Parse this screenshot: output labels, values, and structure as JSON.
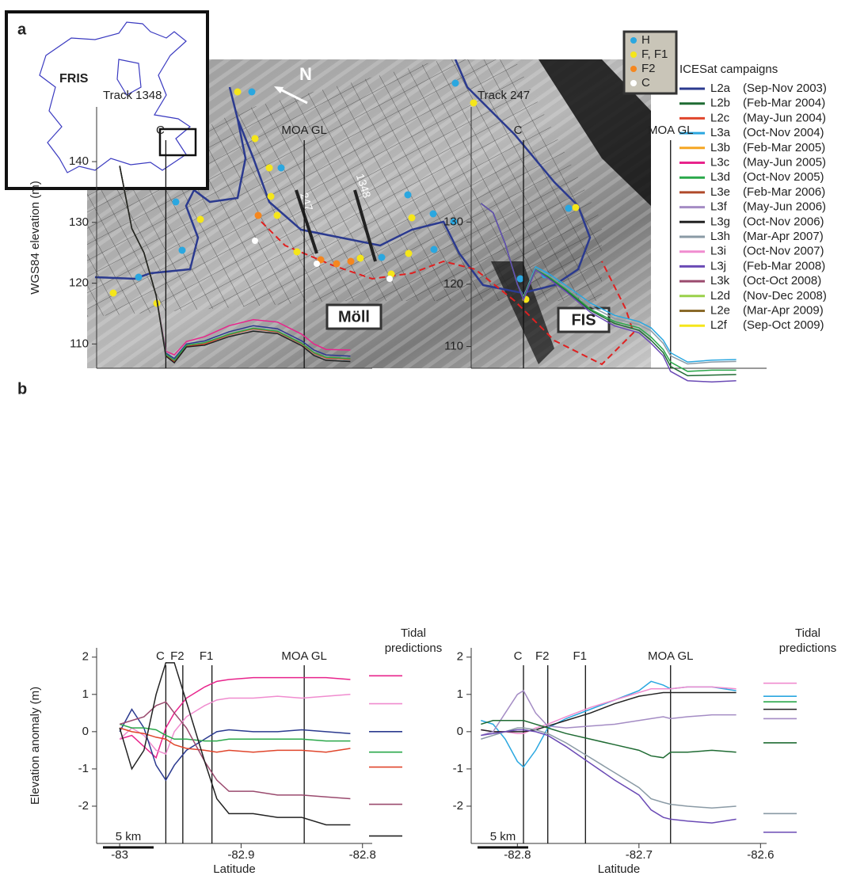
{
  "panel_a": {
    "label": "a",
    "inset_label": "FRIS",
    "north": "N",
    "track_labels": [
      "247",
      "1348"
    ],
    "region_labels": [
      "Möll",
      "FIS"
    ],
    "point_legend": [
      {
        "label": "H",
        "color": "#2aa7e0"
      },
      {
        "label": "F, F1",
        "color": "#f5e61a"
      },
      {
        "label": "F2",
        "color": "#f5871f"
      },
      {
        "label": "C",
        "color": "#ffffff"
      }
    ],
    "campaigns_title": "ICESat campaigns",
    "campaigns": [
      {
        "code": "L2a",
        "period": "(Sep-Nov 2003)",
        "color": "#2b3a8f"
      },
      {
        "code": "L2b",
        "period": "(Feb-Mar 2004)",
        "color": "#1f6b33"
      },
      {
        "code": "L2c",
        "period": "(May-Jun 2004)",
        "color": "#e0452b"
      },
      {
        "code": "L3a",
        "period": "(Oct-Nov 2004)",
        "color": "#2aa7e0"
      },
      {
        "code": "L3b",
        "period": "(Feb-Mar 2005)",
        "color": "#f5a623"
      },
      {
        "code": "L3c",
        "period": "(May-Jun 2005)",
        "color": "#e8248c"
      },
      {
        "code": "L3d",
        "period": "(Oct-Nov 2005)",
        "color": "#2aa84a"
      },
      {
        "code": "L3e",
        "period": "(Feb-Mar 2006)",
        "color": "#b04a2a"
      },
      {
        "code": "L3f",
        "period": "(May-Jun 2006)",
        "color": "#a48cc4"
      },
      {
        "code": "L3g",
        "period": "(Oct-Nov 2006)",
        "color": "#222222"
      },
      {
        "code": "L3h",
        "period": "(Mar-Apr 2007)",
        "color": "#8a9aa5"
      },
      {
        "code": "L3i",
        "period": "(Oct-Nov 2007)",
        "color": "#f08ccf"
      },
      {
        "code": "L3j",
        "period": "(Feb-Mar 2008)",
        "color": "#6a4ab5"
      },
      {
        "code": "L3k",
        "period": "(Oct-Oct 2008)",
        "color": "#9a4a6e"
      },
      {
        "code": "L2d",
        "period": "(Nov-Dec 2008)",
        "color": "#9ad14a"
      },
      {
        "code": "L2e",
        "period": "(Mar-Apr 2009)",
        "color": "#8a6a2a"
      },
      {
        "code": "L2f",
        "period": "(Sep-Oct 2009)",
        "color": "#f5e61a"
      }
    ]
  },
  "panel_b_label": "b",
  "chart_data": [
    {
      "type": "line",
      "title": "Track 1348",
      "ylabel": "WGS84 elevation (m)",
      "xlim": [
        -83.019,
        -82.792
      ],
      "ylim": [
        106,
        149
      ],
      "yticks": [
        110,
        120,
        130,
        140
      ],
      "markers": [
        {
          "label": "C",
          "x": -82.962
        },
        {
          "label": "MOA GL",
          "x": -82.848
        }
      ],
      "x": [
        -83.0,
        -82.99,
        -82.98,
        -82.97,
        -82.962,
        -82.955,
        -82.945,
        -82.93,
        -82.91,
        -82.89,
        -82.87,
        -82.85,
        -82.84,
        -82.83,
        -82.81
      ],
      "series": [
        {
          "color": "#e8248c",
          "values": [
            139.3,
            129,
            125,
            118,
            108.8,
            108.2,
            110.4,
            111.2,
            113,
            114,
            113.6,
            111.6,
            110,
            109.1,
            109
          ]
        },
        {
          "color": "#2b3a8f",
          "values": [
            139.3,
            129,
            125,
            118,
            108.5,
            107.6,
            110,
            110.5,
            112,
            113,
            112.5,
            110.5,
            109,
            108.2,
            108
          ]
        },
        {
          "color": "#e0452b",
          "values": [
            139.3,
            129,
            125,
            118,
            108.2,
            107.1,
            109.6,
            110,
            111.5,
            112.5,
            112,
            110,
            108.5,
            107.7,
            107.5
          ]
        },
        {
          "color": "#2aa84a",
          "values": [
            139.3,
            129,
            125,
            118,
            108.3,
            107.3,
            109.8,
            110.2,
            111.6,
            112.6,
            112.1,
            110.1,
            108.6,
            107.8,
            107.6
          ]
        },
        {
          "color": "#222222",
          "values": [
            139.3,
            129,
            125,
            118,
            108,
            106.9,
            109.5,
            109.8,
            111.2,
            112.1,
            111.7,
            109.7,
            108.1,
            107.3,
            107.1
          ]
        }
      ]
    },
    {
      "type": "line",
      "title": "Track 247",
      "xlim": [
        -82.838,
        -82.595
      ],
      "ylim": [
        106.5,
        148.5
      ],
      "yticks": [
        110,
        120,
        130
      ],
      "markers": [
        {
          "label": "C",
          "x": -82.795
        },
        {
          "label": "MOA GL",
          "x": -82.674
        }
      ],
      "x": [
        -82.83,
        -82.82,
        -82.81,
        -82.8,
        -82.795,
        -82.785,
        -82.775,
        -82.76,
        -82.74,
        -82.72,
        -82.7,
        -82.69,
        -82.68,
        -82.674,
        -82.66,
        -82.64,
        -82.62
      ],
      "series": [
        {
          "color": "#2aa7e0",
          "values": [
            133,
            131.5,
            126.5,
            120,
            118,
            122.8,
            121.8,
            119.8,
            117,
            115,
            114,
            113,
            111,
            109,
            107.5,
            107.8,
            107.9
          ]
        },
        {
          "color": "#8a9aa5",
          "values": [
            133,
            131.5,
            126.5,
            120,
            118,
            122.5,
            121.5,
            119.5,
            116.5,
            114.5,
            113.5,
            112.5,
            110.5,
            108.5,
            107.2,
            107.5,
            107.6
          ]
        },
        {
          "color": "#2aa84a",
          "values": [
            133,
            131.5,
            126.5,
            120,
            117.8,
            122.4,
            121.3,
            119.2,
            116,
            114,
            113,
            111.5,
            109.5,
            107.5,
            106,
            106.2,
            106.2
          ]
        },
        {
          "color": "#1f6b33",
          "values": [
            133,
            131.5,
            126.5,
            120,
            117.7,
            122.3,
            121.1,
            119,
            115.8,
            113.7,
            112.6,
            111,
            109,
            106.8,
            105.3,
            105.4,
            105.5
          ]
        },
        {
          "color": "#6a4ab5",
          "values": [
            133,
            131.5,
            126.5,
            120,
            117.5,
            122.3,
            121,
            118.8,
            115.5,
            113.3,
            112.2,
            110.5,
            108.5,
            106,
            104.5,
            104.3,
            104.5
          ]
        }
      ]
    },
    {
      "type": "line",
      "ylabel": "Elevation anomaly (m)",
      "xlabel": "Latitude",
      "xlim": [
        -83.019,
        -82.792
      ],
      "ylim": [
        -3,
        2.25
      ],
      "yticks": [
        -2,
        -1,
        0,
        1,
        2
      ],
      "xticks": [
        -83,
        -82.9,
        -82.8
      ],
      "scale_bar": "5 km",
      "tidal_label": [
        "Tidal",
        "predictions"
      ],
      "markers": [
        {
          "label": "C",
          "x": -82.962
        },
        {
          "label": "F2",
          "x": -82.948
        },
        {
          "label": "F1",
          "x": -82.924
        },
        {
          "label": "MOA GL",
          "x": -82.848
        }
      ],
      "x": [
        -83.0,
        -82.99,
        -82.98,
        -82.97,
        -82.962,
        -82.955,
        -82.945,
        -82.93,
        -82.92,
        -82.91,
        -82.89,
        -82.87,
        -82.85,
        -82.83,
        -82.81
      ],
      "series": [
        {
          "color": "#e8248c",
          "values": [
            -0.2,
            -0.1,
            -0.4,
            -0.7,
            0.1,
            0.5,
            0.9,
            1.2,
            1.35,
            1.4,
            1.45,
            1.45,
            1.45,
            1.45,
            1.4
          ]
        },
        {
          "color": "#f08ccf",
          "values": [
            -0.2,
            0.1,
            -0.1,
            -0.5,
            -0.6,
            0,
            0.4,
            0.7,
            0.85,
            0.9,
            0.9,
            0.95,
            0.9,
            0.95,
            1.0
          ]
        },
        {
          "color": "#2b3a8f",
          "values": [
            0,
            0.6,
            0.1,
            -0.9,
            -1.3,
            -0.9,
            -0.5,
            -0.2,
            0,
            0.05,
            0,
            0,
            0.05,
            0,
            -0.05
          ]
        },
        {
          "color": "#2aa84a",
          "values": [
            0.2,
            0.1,
            0.1,
            0.05,
            -0.1,
            -0.2,
            -0.2,
            -0.25,
            -0.25,
            -0.2,
            -0.2,
            -0.2,
            -0.2,
            -0.25,
            -0.25
          ]
        },
        {
          "color": "#e0452b",
          "values": [
            0.1,
            0,
            -0.05,
            -0.15,
            -0.2,
            -0.35,
            -0.45,
            -0.5,
            -0.55,
            -0.5,
            -0.55,
            -0.5,
            -0.5,
            -0.55,
            -0.45
          ]
        },
        {
          "color": "#9a4a6e",
          "values": [
            0.2,
            0.3,
            0.4,
            0.7,
            0.8,
            0.5,
            0.1,
            -0.8,
            -1.3,
            -1.6,
            -1.6,
            -1.7,
            -1.7,
            -1.75,
            -1.8
          ]
        },
        {
          "color": "#222222",
          "values": [
            0.1,
            -1.0,
            -0.5,
            1.0,
            1.85,
            1.85,
            0.8,
            -0.8,
            -1.8,
            -2.2,
            -2.2,
            -2.3,
            -2.3,
            -2.5,
            -2.5
          ]
        }
      ],
      "tidal_predictions": [
        {
          "color": "#e8248c",
          "value": 1.5
        },
        {
          "color": "#f08ccf",
          "value": 0.75
        },
        {
          "color": "#2b3a8f",
          "value": 0
        },
        {
          "color": "#2aa84a",
          "value": -0.55
        },
        {
          "color": "#e0452b",
          "value": -0.95
        },
        {
          "color": "#9a4a6e",
          "value": -1.95
        },
        {
          "color": "#222222",
          "value": -2.8
        }
      ]
    },
    {
      "type": "line",
      "xlabel": "Latitude",
      "xlim": [
        -82.838,
        -82.595
      ],
      "ylim": [
        -3,
        2.25
      ],
      "yticks": [
        -2,
        -1,
        0,
        1,
        2
      ],
      "xticks": [
        -82.8,
        -82.7,
        -82.6
      ],
      "scale_bar": "5 km",
      "tidal_label": [
        "Tidal",
        "predictions"
      ],
      "markers": [
        {
          "label": "C",
          "x": -82.795
        },
        {
          "label": "F2",
          "x": -82.775
        },
        {
          "label": "F1",
          "x": -82.744
        },
        {
          "label": "MOA GL",
          "x": -82.674
        }
      ],
      "x": [
        -82.83,
        -82.82,
        -82.81,
        -82.8,
        -82.795,
        -82.785,
        -82.775,
        -82.76,
        -82.74,
        -82.72,
        -82.7,
        -82.69,
        -82.68,
        -82.674,
        -82.66,
        -82.64,
        -82.62
      ],
      "series": [
        {
          "color": "#2aa7e0",
          "values": [
            0.3,
            0.2,
            -0.2,
            -0.8,
            -0.95,
            -0.5,
            0.1,
            0.35,
            0.6,
            0.85,
            1.1,
            1.35,
            1.25,
            1.15,
            1.2,
            1.2,
            1.1
          ]
        },
        {
          "color": "#f08ccf",
          "values": [
            0.05,
            0,
            0,
            -0.05,
            -0.05,
            0.1,
            0.2,
            0.4,
            0.65,
            0.85,
            1.05,
            1.15,
            1.15,
            1.15,
            1.2,
            1.2,
            1.15
          ]
        },
        {
          "color": "#222222",
          "values": [
            0.05,
            0,
            0,
            0,
            0,
            0.05,
            0.15,
            0.3,
            0.5,
            0.75,
            0.95,
            1.0,
            1.05,
            1.05,
            1.05,
            1.05,
            1.05
          ]
        },
        {
          "color": "#a48cc4",
          "values": [
            -0.1,
            0,
            0.5,
            1.0,
            1.1,
            0.5,
            0.15,
            0.1,
            0.15,
            0.2,
            0.3,
            0.35,
            0.4,
            0.35,
            0.4,
            0.45,
            0.45
          ]
        },
        {
          "color": "#1f6b33",
          "values": [
            0.2,
            0.3,
            0.3,
            0.3,
            0.3,
            0.2,
            0.1,
            -0.05,
            -0.2,
            -0.35,
            -0.5,
            -0.65,
            -0.7,
            -0.55,
            -0.55,
            -0.5,
            -0.55
          ]
        },
        {
          "color": "#8a9aa5",
          "values": [
            -0.2,
            -0.1,
            0,
            0.1,
            0.1,
            0.05,
            -0.05,
            -0.3,
            -0.7,
            -1.1,
            -1.5,
            -1.8,
            -1.9,
            -1.95,
            -2.0,
            -2.05,
            -2.0
          ]
        },
        {
          "color": "#6a4ab5",
          "values": [
            -0.1,
            -0.05,
            0,
            0.05,
            0.05,
            0,
            -0.1,
            -0.4,
            -0.85,
            -1.3,
            -1.7,
            -2.1,
            -2.3,
            -2.35,
            -2.4,
            -2.45,
            -2.35
          ]
        }
      ],
      "tidal_predictions": [
        {
          "color": "#f08ccf",
          "value": 1.3
        },
        {
          "color": "#2aa7e0",
          "value": 0.95
        },
        {
          "color": "#2aa84a",
          "value": 0.8
        },
        {
          "color": "#222222",
          "value": 0.6
        },
        {
          "color": "#a48cc4",
          "value": 0.35
        },
        {
          "color": "#1f6b33",
          "value": -0.3
        },
        {
          "color": "#8a9aa5",
          "value": -2.2
        },
        {
          "color": "#6a4ab5",
          "value": -2.7
        }
      ]
    }
  ]
}
